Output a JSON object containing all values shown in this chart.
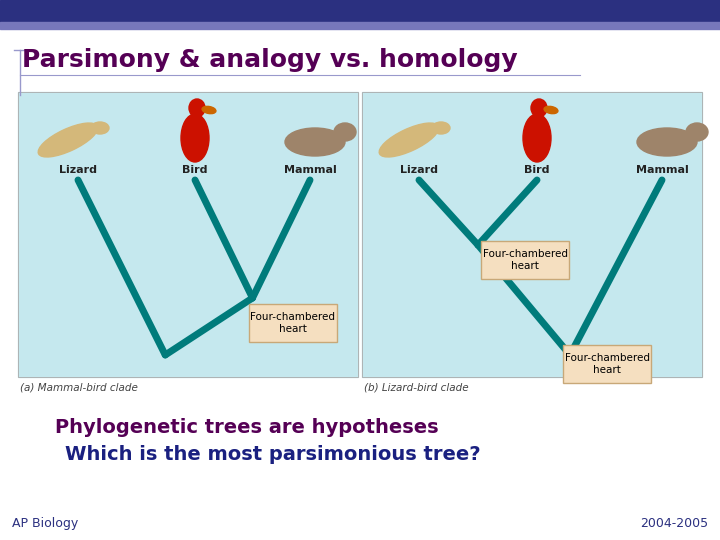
{
  "title": "Parsimony & analogy vs. homology",
  "title_color": "#550055",
  "title_fontsize": 18,
  "header_bar_color": "#2b3080",
  "header_bar2_color": "#7777bb",
  "background_color": "#ffffff",
  "image_bg_color": "#c5e8ee",
  "teal_color": "#007b7b",
  "box_color": "#f5dfc0",
  "box_border_color": "#c8a878",
  "text_dark_blue": "#1a2080",
  "body_purple": "#550055",
  "footer_color": "#2b3080",
  "label_color": "#222222",
  "line1": "Phylogenetic trees are hypotheses",
  "line2": "Which is the most parsimonious tree?",
  "footer_left": "AP Biology",
  "footer_right": "2004-2005",
  "caption_a": "(a) Mammal-bird clade",
  "caption_b": "(b) Lizard-bird clade",
  "box_text": "Four-chambered\nheart"
}
